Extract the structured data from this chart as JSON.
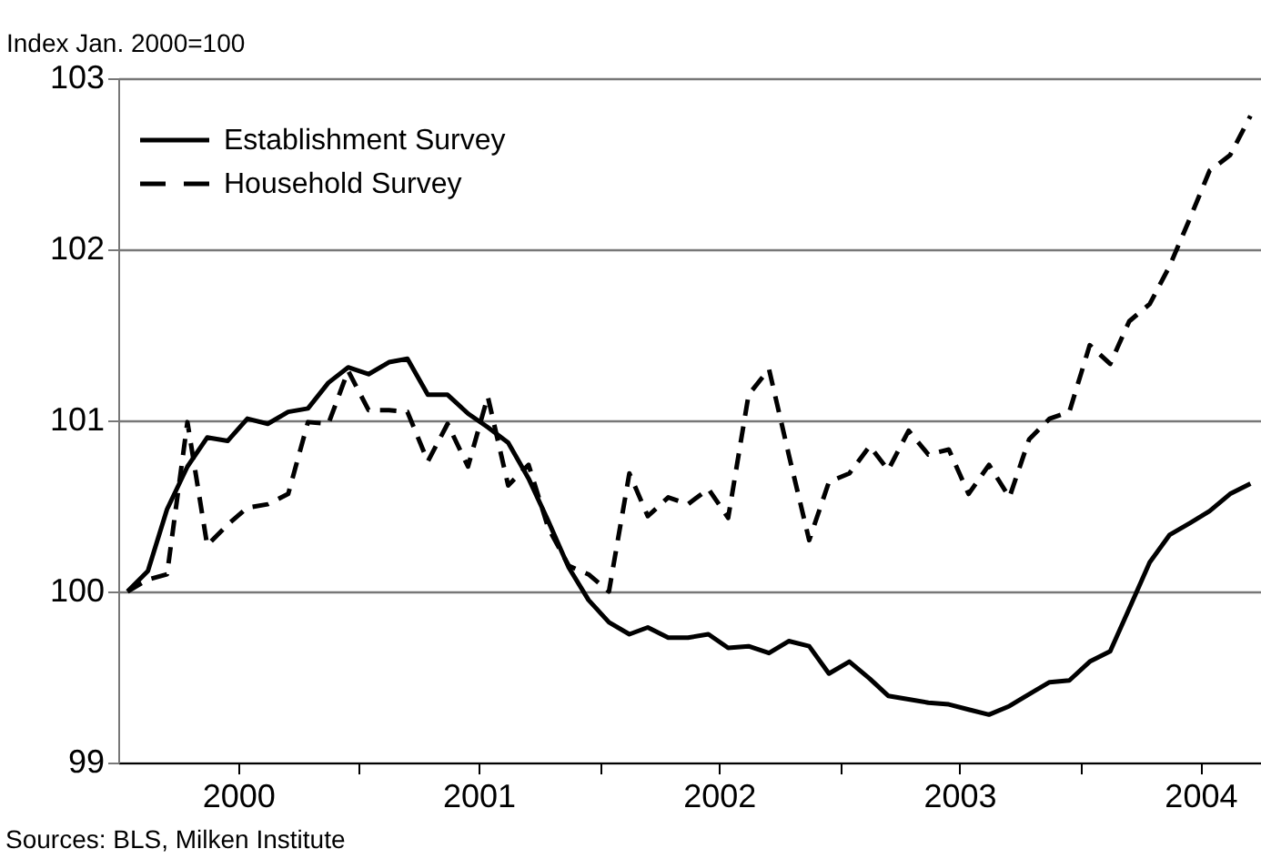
{
  "chart_data": {
    "type": "line",
    "ylabel": "Index Jan. 2000=100",
    "annotations": [
      "Sources: BLS, Milken Institute"
    ],
    "x": [
      "2000-01-15",
      "2000-02-15",
      "2000-03-15",
      "2000-04-15",
      "2000-05-15",
      "2000-06-15",
      "2000-07-15",
      "2000-08-15",
      "2000-09-15",
      "2000-10-15",
      "2000-11-15",
      "2000-12-15",
      "2001-01-15",
      "2001-02-15",
      "2001-03-15",
      "2001-04-15",
      "2001-05-15",
      "2001-06-15",
      "2001-07-15",
      "2001-08-15",
      "2001-09-15",
      "2001-10-15",
      "2001-11-15",
      "2001-12-15",
      "2002-01-15",
      "2002-02-15",
      "2002-03-15",
      "2002-04-15",
      "2002-05-15",
      "2002-06-15",
      "2002-07-15",
      "2002-08-15",
      "2002-09-15",
      "2002-10-15",
      "2002-11-15",
      "2002-12-15",
      "2003-01-15",
      "2003-02-15",
      "2003-03-15",
      "2003-04-15",
      "2003-05-15",
      "2003-06-15",
      "2003-07-15",
      "2003-08-15",
      "2003-09-15",
      "2003-10-15",
      "2003-11-15",
      "2003-12-15",
      "2004-01-15",
      "2004-02-15",
      "2004-03-15",
      "2004-04-15",
      "2004-05-15",
      "2004-06-15",
      "2004-07-15",
      "2004-08-15",
      "2004-09-15"
    ],
    "series": [
      {
        "name": "Establishment Survey",
        "color": "#000000",
        "line_style": "solid",
        "values": [
          100.0,
          100.12,
          100.48,
          100.73,
          100.9,
          100.88,
          101.01,
          100.98,
          101.05,
          101.07,
          101.22,
          101.31,
          101.27,
          101.34,
          101.36,
          101.15,
          101.15,
          101.04,
          100.96,
          100.87,
          100.66,
          100.41,
          100.14,
          99.95,
          99.82,
          99.75,
          99.79,
          99.73,
          99.73,
          99.75,
          99.67,
          99.68,
          99.64,
          99.71,
          99.68,
          99.52,
          99.59,
          99.49,
          99.39,
          99.37,
          99.35,
          99.34,
          99.31,
          99.28,
          99.33,
          99.4,
          99.47,
          99.48,
          99.59,
          99.65,
          99.9,
          100.17,
          100.33,
          100.4,
          100.47,
          100.57,
          100.63
        ]
      },
      {
        "name": "Household Survey",
        "color": "#000000",
        "line_style": "dashed",
        "values": [
          100.0,
          100.07,
          100.1,
          100.99,
          100.27,
          100.39,
          100.49,
          100.51,
          100.57,
          100.99,
          100.98,
          101.29,
          101.06,
          101.06,
          101.05,
          100.76,
          100.98,
          100.73,
          101.14,
          100.62,
          100.74,
          100.37,
          100.15,
          100.1,
          100.0,
          100.69,
          100.44,
          100.55,
          100.51,
          100.6,
          100.43,
          101.15,
          101.3,
          100.8,
          100.3,
          100.64,
          100.69,
          100.85,
          100.71,
          100.94,
          100.8,
          100.83,
          100.57,
          100.74,
          100.55,
          100.89,
          101.01,
          101.05,
          101.44,
          101.33,
          101.58,
          101.68,
          101.9,
          102.18,
          102.46,
          102.55,
          102.78
        ]
      }
    ],
    "xlim": [
      "2000-01-01",
      "2004-10-01"
    ],
    "xticks": [
      {
        "value": "2000-07-01",
        "label": "2000"
      },
      {
        "value": "2001-01-01",
        "label": null
      },
      {
        "value": "2001-07-01",
        "label": "2001"
      },
      {
        "value": "2002-01-01",
        "label": null
      },
      {
        "value": "2002-07-01",
        "label": "2002"
      },
      {
        "value": "2003-01-01",
        "label": null
      },
      {
        "value": "2003-07-01",
        "label": "2003"
      },
      {
        "value": "2004-01-01",
        "label": null
      },
      {
        "value": "2004-07-01",
        "label": "2004"
      }
    ],
    "ylim": [
      99,
      103
    ],
    "yticks": [
      99,
      100,
      101,
      102,
      103
    ],
    "grid": "y",
    "legend": "top left",
    "marker": "none"
  }
}
